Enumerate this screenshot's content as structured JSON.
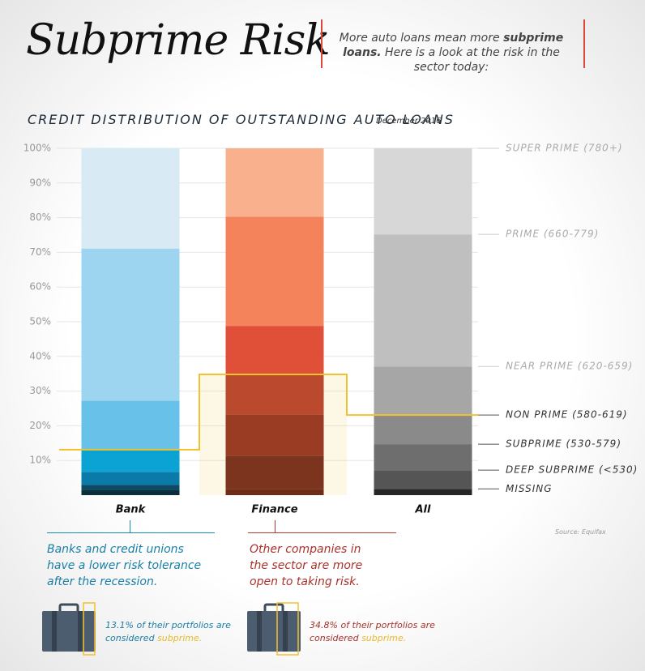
{
  "header": {
    "title": "Subprime Risk",
    "subtitle_lead": "More auto loans mean more",
    "subtitle_bold": "subprime loans.",
    "subtitle_rest": "Here is a look at the risk in the sector today:"
  },
  "chart_data": {
    "type": "stacked_bar",
    "title": "Credit Distribution of Outstanding Auto Loans",
    "subtitle": "December 2016",
    "categories": [
      "Bank",
      "Finance",
      "All"
    ],
    "series": [
      {
        "name": "Missing",
        "colors": [
          "#0b2e3d",
          "#5e1a15",
          "#262626"
        ],
        "values": [
          1.5,
          1.8,
          1.8
        ]
      },
      {
        "name": "Deep Subprime (<530)",
        "colors": [
          "#0c4a66",
          "#6e221c",
          "#555555"
        ],
        "values": [
          1.5,
          9.6,
          5.4
        ]
      },
      {
        "name": "Subprime (530-579)",
        "colors": [
          "#0a7aa8",
          "#8f2b22",
          "#6e6e6e"
        ],
        "values": [
          3.7,
          11.9,
          7.5
        ]
      },
      {
        "name": "Non Prime (580-619)",
        "colors": [
          "#0aa3d4",
          "#b33a2e",
          "#8a8a8a"
        ],
        "values": [
          6.4,
          11.5,
          8.4
        ]
      },
      {
        "name": "Near Prime (620-659)",
        "colors": [
          "#67c1e8",
          "#e05039",
          "#a6a6a6"
        ],
        "values": [
          14.1,
          14.0,
          14.0
        ]
      },
      {
        "name": "Prime (660-779)",
        "colors": [
          "#9dd5f0",
          "#f4835c",
          "#c0bfbf"
        ],
        "values": [
          43.9,
          31.5,
          38.1
        ]
      },
      {
        "name": "Super Prime (780+)",
        "colors": [
          "#d8eaf4",
          "#f9b08c",
          "#d7d7d7"
        ],
        "values": [
          28.9,
          19.7,
          24.8
        ]
      }
    ],
    "ylim": [
      0,
      100
    ],
    "yticks": [
      {
        "value": 10,
        "label": "10%"
      },
      {
        "value": 20,
        "label": "20%"
      },
      {
        "value": 30,
        "label": "30%"
      },
      {
        "value": 40,
        "label": "40%"
      },
      {
        "value": 50,
        "label": "50%"
      },
      {
        "value": 60,
        "label": "60%"
      },
      {
        "value": 70,
        "label": "70%"
      },
      {
        "value": 80,
        "label": "80%"
      },
      {
        "value": 90,
        "label": "90%"
      },
      {
        "value": 100,
        "label": "100%"
      }
    ],
    "grid": true,
    "line_color": "#f2c12e",
    "source": "Source: Equifax"
  },
  "notes": {
    "bank": "Banks and credit unions have a lower risk tolerance after the recession.",
    "finance": "Other companies in the sector are more open to taking risk.",
    "bank_callout": "13.1% of their portfolios are considered",
    "finance_callout": "34.8% of their portfolios are considered",
    "callout_word": "subprime."
  }
}
